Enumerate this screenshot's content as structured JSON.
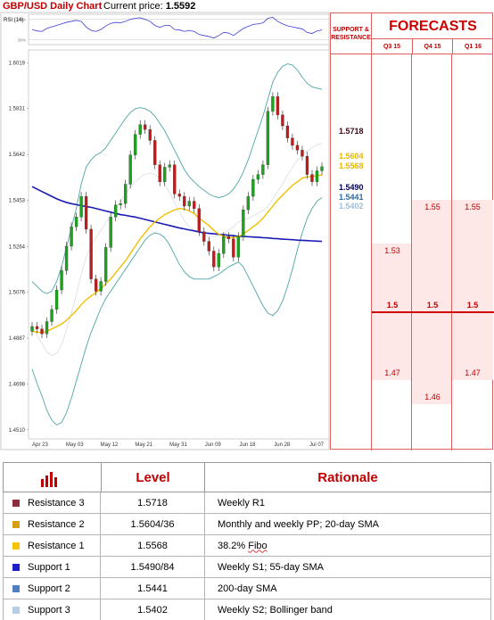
{
  "header": {
    "title": "GBP/USD Daily Chart",
    "price_label": "Current price:",
    "price_value": "1.5592"
  },
  "rsi": {
    "label": "RSI (14)",
    "levels": [
      "70%",
      "30%"
    ]
  },
  "chart_data": {
    "type": "candlestick",
    "title": "GBP/USD Daily Chart",
    "y_ticks": [
      1.6019,
      1.5831,
      1.5642,
      1.5453,
      1.5264,
      1.5076,
      1.4887,
      1.4698,
      1.451
    ],
    "x_ticks": [
      "Apr 23",
      "May 03",
      "May 12",
      "May 21",
      "May 31",
      "Jun 09",
      "Jun 18",
      "Jun 28",
      "Jul 07"
    ],
    "ylim": [
      1.448,
      1.605
    ],
    "closes": [
      1.4935,
      1.4925,
      1.4905,
      1.4955,
      1.5005,
      1.5085,
      1.5165,
      1.5265,
      1.5345,
      1.5385,
      1.547,
      1.5335,
      1.513,
      1.508,
      1.512,
      1.526,
      1.5385,
      1.5435,
      1.544,
      1.552,
      1.564,
      1.5725,
      1.5765,
      1.5745,
      1.57,
      1.56,
      1.553,
      1.559,
      1.56,
      1.548,
      1.547,
      1.543,
      1.545,
      1.542,
      1.5325,
      1.5285,
      1.5245,
      1.518,
      1.5235,
      1.5305,
      1.5295,
      1.522,
      1.5305,
      1.5415,
      1.547,
      1.554,
      1.556,
      1.56,
      1.582,
      1.588,
      1.5805,
      1.576,
      1.571,
      1.568,
      1.566,
      1.5635,
      1.556,
      1.553,
      1.5575,
      1.5592
    ],
    "sma20": [
      1.4915,
      1.4912,
      1.491,
      1.4915,
      1.4925,
      1.4935,
      1.4945,
      1.496,
      1.498,
      1.5,
      1.5025,
      1.5045,
      1.506,
      1.5075,
      1.509,
      1.511,
      1.513,
      1.5155,
      1.518,
      1.5205,
      1.5235,
      1.5265,
      1.5295,
      1.532,
      1.5345,
      1.5365,
      1.538,
      1.5395,
      1.5405,
      1.5415,
      1.542,
      1.5418,
      1.541,
      1.54,
      1.538,
      1.5365,
      1.535,
      1.533,
      1.5315,
      1.5305,
      1.53,
      1.53,
      1.5305,
      1.5315,
      1.533,
      1.5345,
      1.536,
      1.538,
      1.5405,
      1.543,
      1.5455,
      1.5475,
      1.5495,
      1.5515,
      1.553,
      1.5545,
      1.555,
      1.5552,
      1.5555,
      1.5558
    ],
    "sma55": [
      1.551,
      1.55,
      1.549,
      1.548,
      1.547,
      1.546,
      1.5452,
      1.5445,
      1.544,
      1.5436,
      1.5432,
      1.5428,
      1.5425,
      1.542,
      1.5415,
      1.541,
      1.5405,
      1.54,
      1.5395,
      1.5392,
      1.5388,
      1.5385,
      1.538,
      1.5375,
      1.537,
      1.5365,
      1.536,
      1.5355,
      1.535,
      1.5345,
      1.534,
      1.5336,
      1.5332,
      1.5328,
      1.5324,
      1.532,
      1.5318,
      1.5316,
      1.5314,
      1.5312,
      1.531,
      1.5308,
      1.5306,
      1.5305,
      1.5304,
      1.5303,
      1.5302,
      1.53,
      1.5299,
      1.5297,
      1.5296,
      1.5294,
      1.5293,
      1.5292,
      1.529,
      1.5289,
      1.5288,
      1.5287,
      1.5286,
      1.5285
    ],
    "sma200": [
      1.504,
      1.5045,
      1.505,
      1.5055,
      1.506,
      1.507,
      1.508,
      1.5095,
      1.511,
      1.513,
      1.515,
      1.5165,
      1.518,
      1.5195,
      1.521,
      1.5225,
      1.524,
      1.5255,
      1.527,
      1.5285,
      1.53,
      1.5315,
      1.533,
      1.534,
      1.535,
      1.536,
      1.537,
      1.5378,
      1.5385,
      1.539,
      1.5394,
      1.5396,
      1.5398,
      1.5398,
      1.5396,
      1.5394,
      1.5392,
      1.539,
      1.539,
      1.5392,
      1.5394,
      1.5396,
      1.5398,
      1.5402,
      1.5406,
      1.541,
      1.5415,
      1.542,
      1.5426,
      1.543,
      1.5434,
      1.5437,
      1.5439,
      1.544,
      1.5441,
      1.5441,
      1.5441,
      1.5441,
      1.5441,
      1.5441
    ],
    "bb_upper": [
      1.512,
      1.51,
      1.508,
      1.507,
      1.508,
      1.512,
      1.518,
      1.526,
      1.534,
      1.542,
      1.552,
      1.559,
      1.562,
      1.564,
      1.565,
      1.567,
      1.57,
      1.573,
      1.576,
      1.579,
      1.5815,
      1.583,
      1.5835,
      1.583,
      1.582,
      1.58,
      1.577,
      1.574,
      1.57,
      1.566,
      1.562,
      1.558,
      1.555,
      1.553,
      1.551,
      1.5495,
      1.548,
      1.547,
      1.5465,
      1.547,
      1.548,
      1.55,
      1.553,
      1.557,
      1.562,
      1.568,
      1.574,
      1.58,
      1.587,
      1.594,
      1.598,
      1.6005,
      1.6015,
      1.601,
      1.599,
      1.596,
      1.5935,
      1.592,
      1.5915,
      1.591
    ],
    "bb_lower": [
      1.476,
      1.47,
      1.465,
      1.459,
      1.455,
      1.453,
      1.454,
      1.458,
      1.464,
      1.471,
      1.478,
      1.485,
      1.491,
      1.496,
      1.501,
      1.505,
      1.508,
      1.511,
      1.514,
      1.517,
      1.52,
      1.523,
      1.526,
      1.529,
      1.531,
      1.532,
      1.5315,
      1.53,
      1.527,
      1.523,
      1.519,
      1.516,
      1.514,
      1.513,
      1.513,
      1.513,
      1.513,
      1.514,
      1.515,
      1.5165,
      1.518,
      1.519,
      1.52,
      1.518,
      1.514,
      1.51,
      1.506,
      1.502,
      1.499,
      1.498,
      1.5,
      1.504,
      1.51,
      1.517,
      1.525,
      1.532,
      1.538,
      1.542,
      1.545,
      1.5465
    ],
    "bb_mid": [
      1.494,
      1.49,
      1.4865,
      1.483,
      1.4815,
      1.4825,
      1.486,
      1.492,
      1.499,
      1.5065,
      1.515,
      1.522,
      1.5265,
      1.53,
      1.533,
      1.536,
      1.539,
      1.542,
      1.545,
      1.548,
      1.5508,
      1.553,
      1.5548,
      1.556,
      1.5565,
      1.556,
      1.5542,
      1.552,
      1.5485,
      1.5445,
      1.5405,
      1.537,
      1.5345,
      1.533,
      1.532,
      1.5312,
      1.5305,
      1.5305,
      1.5307,
      1.5317,
      1.533,
      1.5345,
      1.5365,
      1.5375,
      1.538,
      1.539,
      1.54,
      1.541,
      1.543,
      1.546,
      1.549,
      1.5522,
      1.5557,
      1.559,
      1.562,
      1.564,
      1.5657,
      1.567,
      1.5682,
      1.5688
    ],
    "rsi_values": [
      50,
      47,
      46,
      52,
      55,
      58,
      61,
      64,
      66,
      68,
      66,
      55,
      48,
      46,
      50,
      57,
      62,
      64,
      63,
      66,
      70,
      72,
      73,
      70,
      66,
      58,
      54,
      58,
      58,
      50,
      49,
      46,
      48,
      46,
      40,
      38,
      36,
      33,
      38,
      44,
      43,
      38,
      45,
      52,
      56,
      60,
      61,
      63,
      72,
      74,
      66,
      61,
      57,
      55,
      53,
      51,
      44,
      42,
      47,
      49
    ]
  },
  "levels_on_chart": [
    {
      "value": "1.5718",
      "price": 1.5718,
      "color": "#6b1a2f"
    },
    {
      "value": "1.5604",
      "price": 1.5612,
      "color": "#e6b800"
    },
    {
      "value": "1.5568",
      "price": 1.5574,
      "color": "#e6b800"
    },
    {
      "value": "1.5490",
      "price": 1.5485,
      "color": "#1a1aa0"
    },
    {
      "value": "1.5441",
      "price": 1.5446,
      "color": "#2e6a9e"
    },
    {
      "value": "1.5402",
      "price": 1.5408,
      "color": "#9fc0d8"
    }
  ],
  "forecast_panel": {
    "sr_header_line1": "SUPPORT &",
    "sr_header_line2": "RESISTANCE",
    "title": "FORECASTS",
    "columns": [
      {
        "label": "Q3 15",
        "high": "1.53",
        "mid": "1.5",
        "low": "1.47",
        "high_price": 1.528,
        "low_price": 1.472
      },
      {
        "label": "Q4 15",
        "high": "1.55",
        "mid": "1.5",
        "low": "1.46",
        "high_price": 1.546,
        "low_price": 1.462
      },
      {
        "label": "Q1 16",
        "high": "1.55",
        "mid": "1.5",
        "low": "1.47",
        "high_price": 1.546,
        "low_price": 1.472
      }
    ]
  },
  "table": {
    "level_header": "Level",
    "rationale_header": "Rationale",
    "rows": [
      {
        "name": "Resistance 3",
        "level": "1.5718",
        "rationale": "Weekly R1",
        "color": "#8b2f3f"
      },
      {
        "name": "Resistance 2",
        "level": "1.5604/36",
        "rationale": "Monthly and weekly PP; 20-day SMA",
        "color": "#d4a017"
      },
      {
        "name": "Resistance 1",
        "level": "1.5568",
        "rationale_pre": "38.2% ",
        "rationale_fibo": "Fibo",
        "color": "#f5c400"
      },
      {
        "name": "Support 1",
        "level": "1.5490/84",
        "rationale": "Weekly S1; 55-day SMA",
        "color": "#1f1fc8"
      },
      {
        "name": "Support 2",
        "level": "1.5441",
        "rationale": "200-day SMA",
        "color": "#4f7fc0"
      },
      {
        "name": "Support 3",
        "level": "1.5402",
        "rationale": "Weekly S2; Bollinger band",
        "color": "#b8cde6"
      }
    ]
  }
}
